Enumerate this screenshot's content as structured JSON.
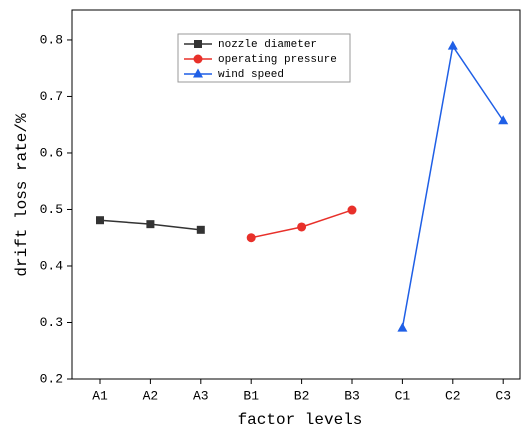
{
  "chart_data": {
    "type": "line",
    "x_label": "factor levels",
    "y_label": "drift loss rate/%",
    "categories": [
      "A1",
      "A2",
      "A3",
      "B1",
      "B2",
      "B3",
      "C1",
      "C2",
      "C3"
    ],
    "series": [
      {
        "name": "nozzle diameter",
        "color": "#333333",
        "marker": "square",
        "values": [
          0.481,
          0.474,
          0.464,
          null,
          null,
          null,
          null,
          null,
          null
        ]
      },
      {
        "name": "operating pressure",
        "color": "#e8302a",
        "marker": "circle",
        "values": [
          null,
          null,
          null,
          0.45,
          0.469,
          0.499,
          null,
          null,
          null
        ]
      },
      {
        "name": "wind speed",
        "color": "#1f5fe6",
        "marker": "triangle",
        "values": [
          null,
          null,
          null,
          null,
          null,
          null,
          0.29,
          0.789,
          0.657
        ]
      }
    ],
    "ylim": [
      0.2,
      0.853
    ],
    "yticks": [
      0.2,
      0.3,
      0.4,
      0.5,
      0.6,
      0.7,
      0.8
    ]
  }
}
